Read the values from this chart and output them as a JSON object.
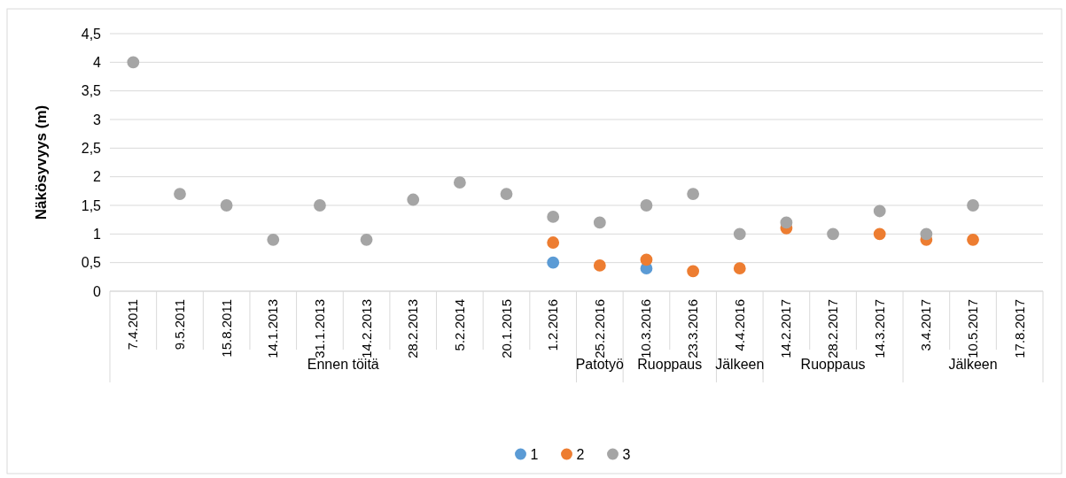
{
  "chart_data": {
    "type": "scatter",
    "ylabel": "Näkösyvyys (m)",
    "categories": [
      "7.4.2011",
      "9.5.2011",
      "15.8.2011",
      "14.1.2013",
      "31.1.2013",
      "14.2.2013",
      "28.2.2013",
      "5.2.2014",
      "20.1.2015",
      "1.2.2016",
      "25.2.2016",
      "10.3.2016",
      "23.3.2016",
      "4.4.2016",
      "14.2.2017",
      "28.2.2017",
      "14.3.2017",
      "3.4.2017",
      "10.5.2017",
      "17.8.2017"
    ],
    "series": [
      {
        "name": "1",
        "color": "#5b9bd5",
        "values": [
          null,
          null,
          null,
          null,
          null,
          null,
          null,
          null,
          null,
          0.5,
          null,
          0.4,
          null,
          null,
          null,
          null,
          null,
          null,
          null,
          null
        ]
      },
      {
        "name": "2",
        "color": "#ed7d31",
        "values": [
          null,
          null,
          null,
          null,
          null,
          null,
          null,
          null,
          null,
          0.85,
          0.45,
          0.55,
          0.35,
          0.4,
          1.1,
          null,
          1.0,
          0.9,
          0.9,
          null
        ]
      },
      {
        "name": "3",
        "color": "#a5a5a5",
        "values": [
          4,
          1.7,
          1.5,
          0.9,
          1.5,
          0.9,
          1.6,
          1.9,
          1.7,
          1.3,
          1.2,
          1.5,
          1.7,
          1.0,
          1.2,
          1.0,
          1.4,
          1.0,
          1.5,
          null
        ]
      }
    ],
    "annotations": [
      "Ennen töitä",
      "Patotyö",
      "Ruoppaus",
      "Jälkeen",
      "Ruoppaus",
      "Jälkeen"
    ],
    "ylim": [
      0,
      4.5
    ],
    "yticks": [
      {
        "value": 0,
        "label": "0"
      },
      {
        "value": 0.5,
        "label": "0,5"
      },
      {
        "value": 1,
        "label": "1"
      },
      {
        "value": 1.5,
        "label": "1,5"
      },
      {
        "value": 2,
        "label": "2"
      },
      {
        "value": 2.5,
        "label": "2,5"
      },
      {
        "value": 3,
        "label": "3"
      },
      {
        "value": 3.5,
        "label": "3,5"
      },
      {
        "value": 4,
        "label": "4"
      },
      {
        "value": 4.5,
        "label": "4,5"
      }
    ],
    "grid": "y",
    "legend": "bottom",
    "marker": "circle"
  }
}
